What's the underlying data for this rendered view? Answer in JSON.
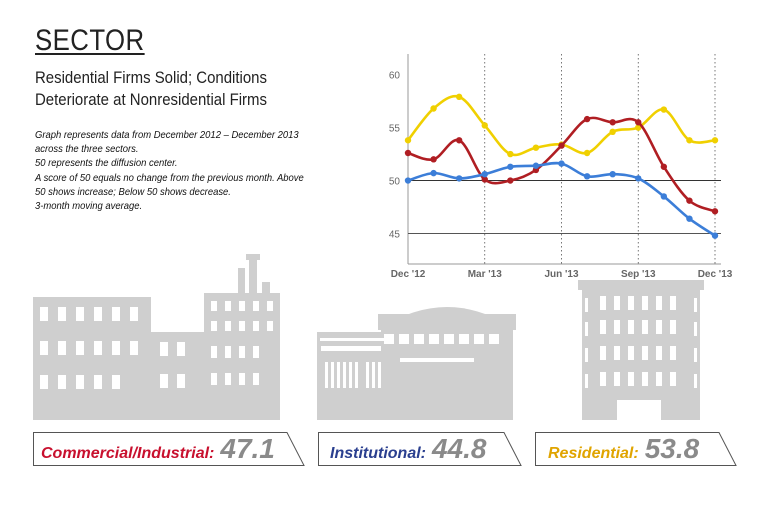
{
  "header": {
    "title": "SECTOR",
    "subtitle_lines": [
      "Residential Firms Solid; Conditions",
      "Deteriorate at Nonresidential Firms"
    ]
  },
  "notes": [
    "Graph represents data from December 2012 – December 2013",
    "across the three sectors.",
    "50 represents the diffusion center.",
    "A score of 50 equals no change from the previous month. Above",
    "50 shows increase; Below 50 shows decrease.",
    "3-month moving average."
  ],
  "chart_data": {
    "type": "line",
    "x_tick_labels": [
      "Dec '12",
      "Mar '13",
      "Jun '13",
      "Sep '13",
      "Dec '13"
    ],
    "x_tick_positions": [
      0,
      3,
      6,
      9,
      12
    ],
    "y_ticks": [
      45,
      50,
      55,
      60
    ],
    "ylim": [
      42.5,
      61
    ],
    "grid": "horizontal at 50 and 45, dotted verticals at quarter ticks",
    "series": [
      {
        "key": "residential",
        "color": "#f0d000",
        "values": [
          53.8,
          56.8,
          57.9,
          55.2,
          52.5,
          53.1,
          53.4,
          52.6,
          54.6,
          55.0,
          56.7,
          53.8,
          53.8
        ]
      },
      {
        "key": "commercial",
        "color": "#b01e23",
        "values": [
          52.6,
          52.0,
          53.8,
          50.1,
          50.0,
          51.0,
          53.3,
          55.8,
          55.5,
          55.5,
          51.3,
          48.1,
          47.1
        ]
      },
      {
        "key": "institutional",
        "color": "#3c7ed8",
        "values": [
          50.0,
          50.7,
          50.2,
          50.6,
          51.3,
          51.4,
          51.6,
          50.4,
          50.6,
          50.2,
          48.5,
          46.4,
          44.8
        ]
      }
    ]
  },
  "labels": [
    {
      "name": "Commercial/Industrial:",
      "value": "47.1",
      "color": "#c8102e"
    },
    {
      "name": "Institutional:",
      "value": "44.8",
      "color": "#2a3f8f"
    },
    {
      "name": "Residential:",
      "value": "53.8",
      "color": "#e0a400"
    }
  ]
}
